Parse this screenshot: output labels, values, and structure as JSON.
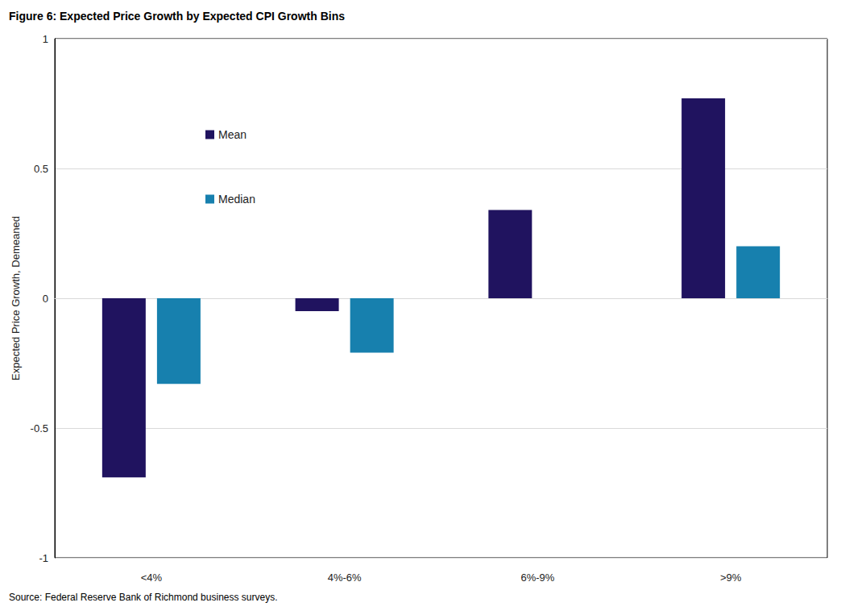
{
  "chart_data": {
    "type": "bar",
    "title": "Figure 6: Expected Price Growth by Expected CPI Growth Bins",
    "source": "Source: Federal Reserve Bank of Richmond business surveys.",
    "ylabel": "Expected Price Growth, Demeaned",
    "categories": [
      "<4%",
      "4%-6%",
      "6%-9%",
      ">9%"
    ],
    "series": [
      {
        "name": "Mean",
        "color": "#20135f",
        "values": [
          -0.69,
          -0.05,
          0.34,
          0.77
        ]
      },
      {
        "name": "Median",
        "color": "#1780ae",
        "values": [
          -0.33,
          -0.21,
          0,
          0.2
        ]
      }
    ],
    "ylim": [
      -1,
      1
    ],
    "yticks": [
      -1,
      -0.5,
      0,
      0.5,
      1
    ],
    "grid": true,
    "legend": "upper left"
  }
}
